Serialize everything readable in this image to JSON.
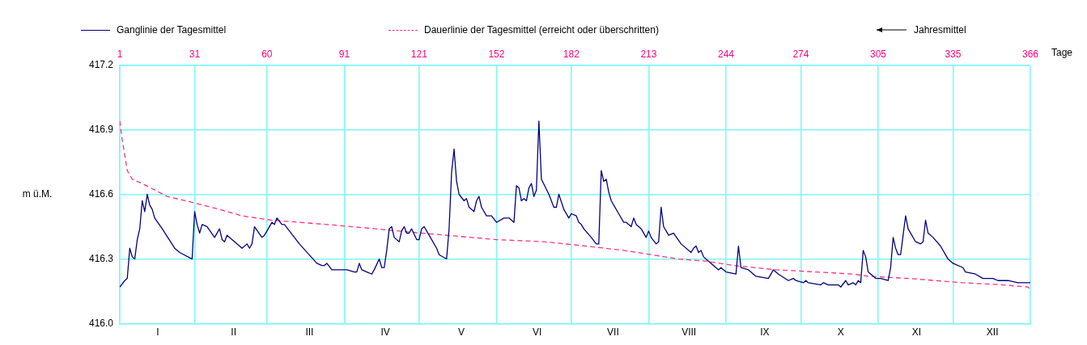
{
  "chart_data": {
    "type": "line",
    "ylabel": "m ü.M.",
    "legend": "top",
    "grid": true,
    "marker": "none",
    "annotations": [
      "Jahresmittel"
    ],
    "categories": [
      "I",
      "II",
      "III",
      "IV",
      "V",
      "VI",
      "VII",
      "VIII",
      "IX",
      "X",
      "XI",
      "XII"
    ],
    "x2lim": [
      1,
      366
    ],
    "x2label": "Tage",
    "x2ticks": [
      1,
      31,
      60,
      91,
      121,
      152,
      182,
      213,
      244,
      274,
      305,
      335,
      366
    ],
    "ylim": [
      416.0,
      417.2
    ],
    "yticks": [
      {
        "value": 416,
        "label": "416.0"
      },
      416.3,
      416.6,
      416.9,
      417.2
    ],
    "series": [
      {
        "name": "Ganglinie der Tagesmittel",
        "color": "#000080",
        "line_style": "solid",
        "axis": "x2",
        "x": [
          1,
          3,
          4,
          5,
          6,
          7,
          8,
          9,
          10,
          11,
          12,
          13,
          14,
          15,
          18,
          23,
          25,
          30,
          31,
          32,
          33,
          34,
          36,
          39,
          41,
          42,
          43,
          44,
          49,
          50,
          52,
          53,
          54,
          55,
          58,
          59,
          62,
          63,
          64,
          66,
          67,
          73,
          80,
          82,
          83,
          84,
          86,
          89,
          92,
          95,
          96,
          97,
          98,
          100,
          102,
          103,
          105,
          106,
          107,
          108,
          109,
          110,
          111,
          113,
          114,
          115,
          116,
          117,
          118,
          120,
          121,
          122,
          123,
          125,
          128,
          129,
          132,
          133,
          134,
          135,
          136,
          137,
          139,
          140,
          141,
          143,
          144,
          145,
          146,
          148,
          150,
          152,
          155,
          156,
          157,
          159,
          160,
          161,
          162,
          163,
          164,
          165,
          166,
          167,
          168,
          169,
          170,
          173,
          175,
          176,
          177,
          179,
          181,
          182,
          184,
          185,
          186,
          187,
          190,
          192,
          193,
          194,
          195,
          196,
          197,
          198,
          201,
          203,
          204,
          206,
          207,
          208,
          210,
          212,
          213,
          214,
          216,
          217,
          218,
          219,
          221,
          223,
          226,
          230,
          231,
          232,
          233,
          234,
          235,
          237,
          241,
          242,
          244,
          248,
          249,
          250,
          253,
          256,
          261,
          263,
          265,
          269,
          271,
          272,
          275,
          276,
          277,
          282,
          283,
          285,
          289,
          290,
          292,
          293,
          295,
          296,
          297,
          298,
          299,
          300,
          301,
          304,
          306,
          309,
          310,
          311,
          312,
          313,
          314,
          315,
          316,
          317,
          320,
          322,
          323,
          324,
          325,
          327,
          330,
          333,
          335,
          339,
          340,
          344,
          347,
          351,
          353,
          357,
          361,
          363,
          366
        ],
        "values": [
          416.17,
          416.2,
          416.21,
          416.35,
          416.31,
          416.3,
          416.39,
          416.44,
          416.57,
          416.52,
          416.6,
          416.55,
          416.53,
          416.49,
          416.44,
          416.35,
          416.33,
          416.3,
          416.52,
          416.46,
          416.42,
          416.46,
          416.45,
          416.4,
          416.44,
          416.39,
          416.38,
          416.41,
          416.36,
          416.35,
          416.37,
          416.35,
          416.37,
          416.45,
          416.4,
          416.41,
          416.47,
          416.46,
          416.49,
          416.46,
          416.46,
          416.37,
          416.28,
          416.27,
          416.27,
          416.28,
          416.25,
          416.25,
          416.25,
          416.24,
          416.24,
          416.28,
          416.25,
          416.24,
          416.23,
          416.25,
          416.3,
          416.26,
          416.26,
          416.34,
          416.44,
          416.45,
          416.4,
          416.38,
          416.43,
          416.45,
          416.42,
          416.42,
          416.44,
          416.39,
          416.39,
          416.44,
          416.45,
          416.41,
          416.35,
          416.32,
          416.3,
          416.44,
          416.7,
          416.81,
          416.66,
          416.6,
          416.57,
          416.58,
          416.54,
          416.52,
          416.57,
          416.59,
          416.54,
          416.5,
          416.5,
          416.47,
          416.49,
          416.49,
          416.49,
          416.47,
          416.64,
          416.63,
          416.57,
          416.58,
          416.57,
          416.63,
          416.65,
          416.59,
          416.62,
          416.94,
          416.67,
          416.6,
          416.54,
          416.54,
          416.6,
          416.53,
          416.49,
          416.51,
          416.5,
          416.47,
          416.46,
          416.44,
          416.4,
          416.37,
          416.37,
          416.71,
          416.66,
          416.67,
          416.61,
          416.57,
          416.51,
          416.47,
          416.47,
          416.45,
          416.49,
          416.46,
          416.44,
          416.4,
          416.43,
          416.4,
          416.37,
          416.38,
          416.54,
          416.45,
          416.41,
          416.42,
          416.37,
          416.33,
          416.35,
          416.36,
          416.33,
          416.34,
          416.31,
          416.29,
          416.25,
          416.26,
          416.24,
          416.23,
          416.36,
          416.26,
          416.25,
          416.22,
          416.21,
          416.25,
          416.23,
          416.2,
          416.21,
          416.2,
          416.19,
          416.2,
          416.19,
          416.18,
          416.19,
          416.18,
          416.18,
          416.17,
          416.2,
          416.18,
          416.19,
          416.18,
          416.2,
          416.19,
          416.34,
          416.31,
          416.24,
          416.21,
          416.21,
          416.2,
          416.26,
          416.4,
          416.35,
          416.32,
          416.32,
          416.41,
          416.5,
          416.44,
          416.38,
          416.37,
          416.38,
          416.48,
          416.42,
          416.4,
          416.36,
          416.3,
          416.28,
          416.26,
          416.24,
          416.23,
          416.21,
          416.21,
          416.2,
          416.2,
          416.19,
          416.19,
          416.19
        ]
      },
      {
        "name": "Dauerlinie der Tagesmittel (erreicht oder überschritten)",
        "color": "#ff3377",
        "line_style": "dashed",
        "axis": "x2",
        "x": [
          1,
          2,
          3,
          4,
          6,
          10,
          15,
          20,
          31,
          41,
          50,
          62,
          73,
          84,
          94,
          122,
          152,
          171,
          188,
          203,
          225,
          236,
          247,
          264,
          280,
          295,
          301,
          317,
          339,
          355,
          365,
          366
        ],
        "values": [
          416.94,
          416.85,
          416.78,
          416.71,
          416.67,
          416.65,
          416.62,
          416.59,
          416.56,
          416.53,
          416.5,
          416.48,
          416.47,
          416.46,
          416.45,
          416.42,
          416.39,
          416.38,
          416.36,
          416.34,
          416.3,
          416.29,
          416.27,
          416.25,
          416.24,
          416.23,
          416.22,
          416.21,
          416.19,
          416.18,
          416.17,
          416.16
        ]
      }
    ]
  }
}
